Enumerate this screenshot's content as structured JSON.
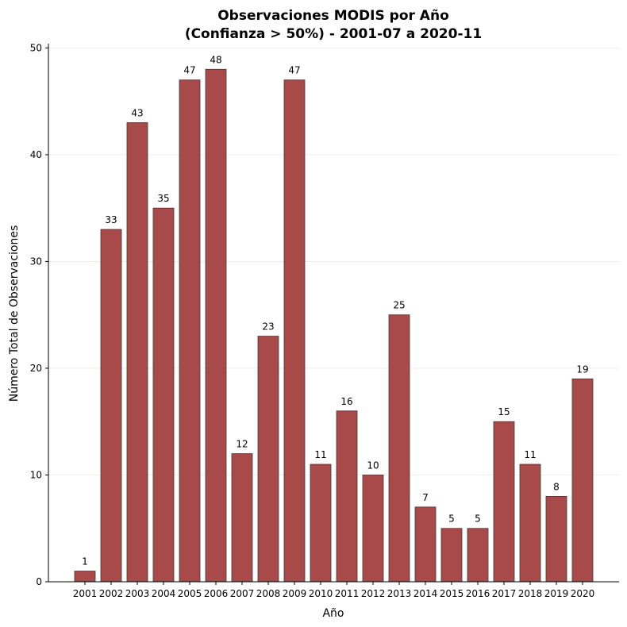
{
  "chart_data": {
    "type": "bar",
    "title_line1": "Observaciones MODIS por Año",
    "title_line2": "(Confianza > 50%) - 2001-07 a 2020-11",
    "xlabel": "Año",
    "ylabel": "Número Total de Observaciones",
    "categories": [
      "2001",
      "2002",
      "2003",
      "2004",
      "2005",
      "2006",
      "2007",
      "2008",
      "2009",
      "2010",
      "2011",
      "2012",
      "2013",
      "2014",
      "2015",
      "2016",
      "2017",
      "2018",
      "2019",
      "2020"
    ],
    "values": [
      1,
      33,
      43,
      35,
      47,
      48,
      12,
      23,
      47,
      11,
      16,
      10,
      25,
      7,
      5,
      5,
      15,
      11,
      8,
      19
    ],
    "ylim": [
      0,
      50.4
    ],
    "yticks": [
      0,
      10,
      20,
      30,
      40,
      50
    ],
    "grid": "horizontal",
    "bar_color": "#a94a4a",
    "bar_edge_color": "#3a3a3a"
  }
}
